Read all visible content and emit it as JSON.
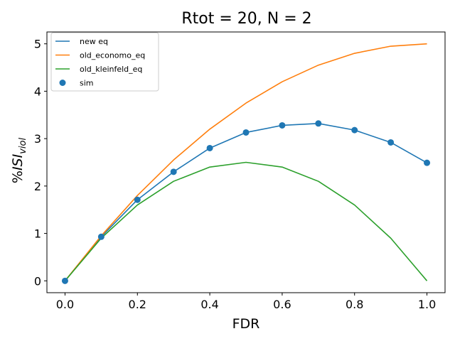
{
  "chart_data": {
    "type": "line",
    "title": "Rtot = 20, N = 2",
    "xlabel": "FDR",
    "ylabel": {
      "prefix": "%",
      "main": "ISI",
      "sub": "viol"
    },
    "xlim": [
      -0.05,
      1.05
    ],
    "ylim": [
      -0.25,
      5.25
    ],
    "xticks": [
      0.0,
      0.2,
      0.4,
      0.6,
      0.8,
      1.0
    ],
    "xtick_labels": [
      "0.0",
      "0.2",
      "0.4",
      "0.6",
      "0.8",
      "1.0"
    ],
    "yticks": [
      0,
      1,
      2,
      3,
      4,
      5
    ],
    "ytick_labels": [
      "0",
      "1",
      "2",
      "3",
      "4",
      "5"
    ],
    "grid": false,
    "legend_position": "top-left",
    "x": [
      0.0,
      0.1,
      0.2,
      0.3,
      0.4,
      0.5,
      0.6,
      0.7,
      0.8,
      0.9,
      1.0
    ],
    "series": [
      {
        "name": "new eq",
        "kind": "line",
        "color": "#1f77b4",
        "values": [
          0.0,
          0.93,
          1.71,
          2.3,
          2.8,
          3.13,
          3.28,
          3.32,
          3.18,
          2.92,
          2.49
        ]
      },
      {
        "name": "old_economo_eq",
        "kind": "line",
        "color": "#ff7f0e",
        "values": [
          0.0,
          0.95,
          1.8,
          2.55,
          3.2,
          3.75,
          4.2,
          4.55,
          4.8,
          4.95,
          5.0
        ]
      },
      {
        "name": "old_kleinfeld_eq",
        "kind": "line",
        "color": "#2ca02c",
        "values": [
          0.0,
          0.9,
          1.6,
          2.1,
          2.4,
          2.5,
          2.4,
          2.1,
          1.6,
          0.9,
          0.0
        ]
      },
      {
        "name": "sim",
        "kind": "scatter",
        "color": "#1f77b4",
        "values": [
          0.0,
          0.93,
          1.71,
          2.3,
          2.8,
          3.13,
          3.28,
          3.32,
          3.18,
          2.92,
          2.49
        ]
      }
    ]
  }
}
